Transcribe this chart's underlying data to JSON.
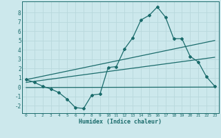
{
  "title": "",
  "xlabel": "Humidex (Indice chaleur)",
  "xlim": [
    -0.5,
    23.5
  ],
  "ylim": [
    -2.8,
    9.2
  ],
  "xticks": [
    0,
    1,
    2,
    3,
    4,
    5,
    6,
    7,
    8,
    9,
    10,
    11,
    12,
    13,
    14,
    15,
    16,
    17,
    18,
    19,
    20,
    21,
    22,
    23
  ],
  "yticks": [
    -2,
    -1,
    0,
    1,
    2,
    3,
    4,
    5,
    6,
    7,
    8
  ],
  "bg_color": "#cce8ec",
  "line_color": "#1a6b6b",
  "grid_color": "#b8d8dc",
  "curve1_x": [
    0,
    1,
    2,
    3,
    4,
    5,
    6,
    7,
    8,
    9,
    10,
    11,
    12,
    13,
    14,
    15,
    16,
    17,
    18,
    19,
    20,
    21,
    22,
    23
  ],
  "curve1_y": [
    0.8,
    0.5,
    0.1,
    -0.2,
    -0.6,
    -1.3,
    -2.2,
    -2.3,
    -0.85,
    -0.75,
    2.1,
    2.2,
    4.1,
    5.3,
    7.2,
    7.7,
    8.6,
    7.5,
    5.2,
    5.2,
    3.3,
    2.7,
    1.1,
    0.1
  ],
  "curve2_x": [
    0,
    23
  ],
  "curve2_y": [
    0.8,
    5.0
  ],
  "curve3_x": [
    0,
    23
  ],
  "curve3_y": [
    0.5,
    3.2
  ],
  "curve4_x": [
    0,
    23
  ],
  "curve4_y": [
    -0.05,
    0.0
  ]
}
